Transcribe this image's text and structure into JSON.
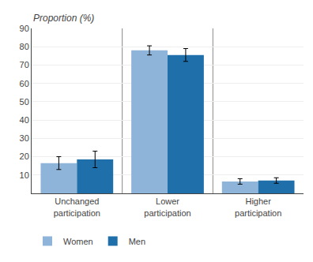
{
  "chart_data": {
    "type": "bar",
    "categories": [
      "Unchanged\nparticipation",
      "Lower\nparticipation",
      "Higher\nparticipation"
    ],
    "series": [
      {
        "name": "Women",
        "color": "#8fb4d9",
        "values": [
          16.5,
          78.0,
          6.5
        ],
        "errors": [
          3.5,
          2.5,
          1.5
        ]
      },
      {
        "name": "Men",
        "color": "#1f6fab",
        "values": [
          18.5,
          75.5,
          7.0
        ],
        "errors": [
          4.5,
          3.5,
          1.5
        ]
      }
    ],
    "ylabel": "Proportion (%)",
    "ylim": [
      0,
      90
    ],
    "yticks": [
      10,
      20,
      30,
      40,
      50,
      60,
      70,
      80,
      90
    ],
    "grid": true,
    "legend": "lower left"
  }
}
